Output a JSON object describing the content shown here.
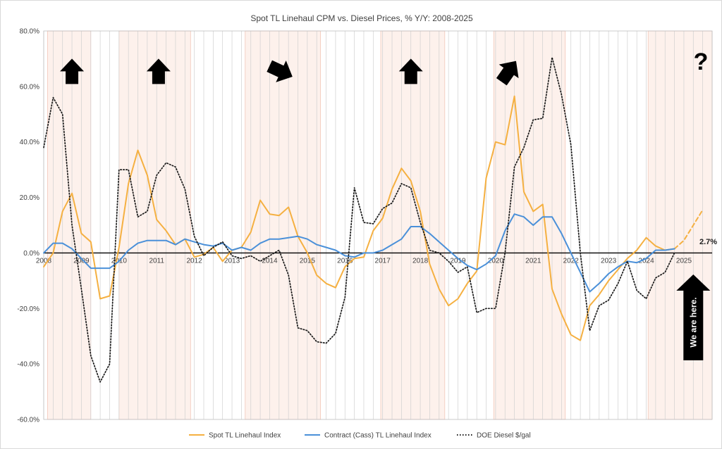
{
  "chart_data": {
    "type": "line",
    "title": "Spot TL Linehaul CPM vs. Diesel Prices, % Y/Y: 2008-2025",
    "xlabel": "",
    "ylabel": "",
    "ylim": [
      -60,
      80
    ],
    "y_ticks": [
      "80.0%",
      "60.0%",
      "40.0%",
      "20.0%",
      "0.0%",
      "-20.0%",
      "-40.0%",
      "-60.0%"
    ],
    "y_tick_values": [
      80,
      60,
      40,
      20,
      0,
      -20,
      -40,
      -60
    ],
    "x_ticks": [
      "2008",
      "2009",
      "2010",
      "2011",
      "2012",
      "2013",
      "2014",
      "2015",
      "2016",
      "2017",
      "2018",
      "2019",
      "2020",
      "2021",
      "2022",
      "2023",
      "2024",
      "2025"
    ],
    "xlim": [
      2008.0,
      2025.75
    ],
    "grid": "vertical quarterly lines",
    "legend_position": "bottom",
    "series": [
      {
        "name": "Spot TL Linehaul Index",
        "color": "#f5b041",
        "style": "solid",
        "points": [
          [
            2008.0,
            -5
          ],
          [
            2008.25,
            0
          ],
          [
            2008.5,
            15
          ],
          [
            2008.75,
            21.5
          ],
          [
            2009.0,
            7
          ],
          [
            2009.25,
            4
          ],
          [
            2009.5,
            -16.5
          ],
          [
            2009.75,
            -15.5
          ],
          [
            2010.0,
            2
          ],
          [
            2010.25,
            25
          ],
          [
            2010.5,
            37
          ],
          [
            2010.75,
            28
          ],
          [
            2011.0,
            12
          ],
          [
            2011.25,
            8
          ],
          [
            2011.5,
            3
          ],
          [
            2011.75,
            5
          ],
          [
            2012.0,
            -1.5
          ],
          [
            2012.25,
            -0.5
          ],
          [
            2012.5,
            2
          ],
          [
            2012.75,
            -3
          ],
          [
            2013.0,
            1
          ],
          [
            2013.25,
            2
          ],
          [
            2013.5,
            7.5
          ],
          [
            2013.75,
            19
          ],
          [
            2014.0,
            14
          ],
          [
            2014.25,
            13.5
          ],
          [
            2014.5,
            16.5
          ],
          [
            2014.75,
            6
          ],
          [
            2015.0,
            0
          ],
          [
            2015.25,
            -8
          ],
          [
            2015.5,
            -11
          ],
          [
            2015.75,
            -12.5
          ],
          [
            2016.0,
            -5
          ],
          [
            2016.25,
            -2
          ],
          [
            2016.5,
            -1.5
          ],
          [
            2016.75,
            8
          ],
          [
            2017.0,
            12.5
          ],
          [
            2017.25,
            23
          ],
          [
            2017.5,
            30.5
          ],
          [
            2017.75,
            26
          ],
          [
            2018.0,
            15
          ],
          [
            2018.25,
            -4
          ],
          [
            2018.5,
            -13
          ],
          [
            2018.75,
            -19
          ],
          [
            2019.0,
            -16.5
          ],
          [
            2019.25,
            -11
          ],
          [
            2019.5,
            -6.5
          ],
          [
            2019.75,
            27
          ],
          [
            2020.0,
            40
          ],
          [
            2020.25,
            39
          ],
          [
            2020.5,
            56.5
          ],
          [
            2020.75,
            22
          ],
          [
            2021.0,
            15
          ],
          [
            2021.25,
            17.5
          ],
          [
            2021.5,
            -13
          ],
          [
            2021.75,
            -22
          ],
          [
            2022.0,
            -29.5
          ],
          [
            2022.25,
            -31.5
          ],
          [
            2022.5,
            -19
          ],
          [
            2022.75,
            -15
          ],
          [
            2023.0,
            -10
          ],
          [
            2023.25,
            -6
          ],
          [
            2023.5,
            -2
          ],
          [
            2023.75,
            1
          ],
          [
            2024.0,
            5.5
          ],
          [
            2024.25,
            2.5
          ],
          [
            2024.5,
            1
          ],
          [
            2024.75,
            1.5
          ]
        ]
      },
      {
        "name": "Spot TL Linehaul Index (forecast)",
        "legend": false,
        "color": "#f5b041",
        "style": "dashed",
        "points": [
          [
            2024.75,
            1.5
          ],
          [
            2025.0,
            4.5
          ],
          [
            2025.25,
            10
          ],
          [
            2025.5,
            15.5
          ]
        ]
      },
      {
        "name": "Contract (Cass) TL Linehaul Index",
        "color": "#4a90d9",
        "style": "solid",
        "points": [
          [
            2008.0,
            0
          ],
          [
            2008.25,
            3.5
          ],
          [
            2008.5,
            3.5
          ],
          [
            2008.75,
            1.5
          ],
          [
            2009.0,
            -2
          ],
          [
            2009.25,
            -5.5
          ],
          [
            2009.5,
            -5.5
          ],
          [
            2009.75,
            -5.5
          ],
          [
            2010.0,
            -3
          ],
          [
            2010.25,
            1
          ],
          [
            2010.5,
            3.5
          ],
          [
            2010.75,
            4.5
          ],
          [
            2011.0,
            4.5
          ],
          [
            2011.25,
            4.5
          ],
          [
            2011.5,
            3
          ],
          [
            2011.75,
            5
          ],
          [
            2012.0,
            4
          ],
          [
            2012.25,
            3
          ],
          [
            2012.5,
            2.5
          ],
          [
            2012.75,
            3.5
          ],
          [
            2013.0,
            1
          ],
          [
            2013.25,
            2
          ],
          [
            2013.5,
            1
          ],
          [
            2013.75,
            3.5
          ],
          [
            2014.0,
            5
          ],
          [
            2014.25,
            5
          ],
          [
            2014.5,
            5.5
          ],
          [
            2014.75,
            6
          ],
          [
            2015.0,
            5
          ],
          [
            2015.25,
            3
          ],
          [
            2015.5,
            2
          ],
          [
            2015.75,
            1
          ],
          [
            2016.0,
            -1
          ],
          [
            2016.25,
            -1.5
          ],
          [
            2016.5,
            0
          ],
          [
            2016.75,
            0
          ],
          [
            2017.0,
            1
          ],
          [
            2017.25,
            3
          ],
          [
            2017.5,
            5
          ],
          [
            2017.75,
            9.5
          ],
          [
            2018.0,
            9.5
          ],
          [
            2018.25,
            7
          ],
          [
            2018.5,
            4
          ],
          [
            2018.75,
            1
          ],
          [
            2019.0,
            -2
          ],
          [
            2019.25,
            -4.5
          ],
          [
            2019.5,
            -6
          ],
          [
            2019.75,
            -4
          ],
          [
            2020.0,
            -1
          ],
          [
            2020.25,
            8
          ],
          [
            2020.5,
            14
          ],
          [
            2020.75,
            13
          ],
          [
            2021.0,
            10
          ],
          [
            2021.25,
            13
          ],
          [
            2021.5,
            13
          ],
          [
            2021.75,
            7
          ],
          [
            2022.0,
            0
          ],
          [
            2022.25,
            -7
          ],
          [
            2022.5,
            -14
          ],
          [
            2022.75,
            -11
          ],
          [
            2023.0,
            -7.5
          ],
          [
            2023.25,
            -5
          ],
          [
            2023.5,
            -3
          ],
          [
            2023.75,
            -3.5
          ],
          [
            2024.0,
            -2
          ],
          [
            2024.25,
            1
          ],
          [
            2024.5,
            1
          ],
          [
            2024.75,
            1.5
          ]
        ]
      },
      {
        "name": "DOE Diesel $/gal",
        "color": "#1a1a1a",
        "style": "dotted",
        "points": [
          [
            2008.0,
            38
          ],
          [
            2008.25,
            56
          ],
          [
            2008.5,
            50
          ],
          [
            2008.75,
            10
          ],
          [
            2009.0,
            -13
          ],
          [
            2009.25,
            -37
          ],
          [
            2009.5,
            -46.5
          ],
          [
            2009.75,
            -40
          ],
          [
            2010.0,
            30
          ],
          [
            2010.25,
            30
          ],
          [
            2010.5,
            13
          ],
          [
            2010.75,
            15
          ],
          [
            2011.0,
            28
          ],
          [
            2011.25,
            32.5
          ],
          [
            2011.5,
            31
          ],
          [
            2011.75,
            23
          ],
          [
            2012.0,
            6
          ],
          [
            2012.25,
            -1
          ],
          [
            2012.5,
            2
          ],
          [
            2012.75,
            4
          ],
          [
            2013.0,
            -1
          ],
          [
            2013.25,
            -2
          ],
          [
            2013.5,
            -1
          ],
          [
            2013.75,
            -3
          ],
          [
            2014.0,
            -1
          ],
          [
            2014.25,
            1
          ],
          [
            2014.5,
            -8
          ],
          [
            2014.75,
            -27
          ],
          [
            2015.0,
            -28
          ],
          [
            2015.25,
            -32
          ],
          [
            2015.5,
            -32.5
          ],
          [
            2015.75,
            -29
          ],
          [
            2016.0,
            -16
          ],
          [
            2016.25,
            23.5
          ],
          [
            2016.5,
            11
          ],
          [
            2016.75,
            10.5
          ],
          [
            2017.0,
            16
          ],
          [
            2017.25,
            18
          ],
          [
            2017.5,
            25
          ],
          [
            2017.75,
            23.5
          ],
          [
            2018.0,
            11
          ],
          [
            2018.25,
            1
          ],
          [
            2018.5,
            0
          ],
          [
            2018.75,
            -3
          ],
          [
            2019.0,
            -7
          ],
          [
            2019.25,
            -5
          ],
          [
            2019.5,
            -21.5
          ],
          [
            2019.75,
            -20
          ],
          [
            2020.0,
            -20
          ],
          [
            2020.25,
            0
          ],
          [
            2020.5,
            31
          ],
          [
            2020.75,
            38
          ],
          [
            2021.0,
            48
          ],
          [
            2021.25,
            48.5
          ],
          [
            2021.5,
            70.5
          ],
          [
            2021.75,
            57
          ],
          [
            2022.0,
            39
          ],
          [
            2022.25,
            0
          ],
          [
            2022.5,
            -28
          ],
          [
            2022.75,
            -19
          ],
          [
            2023.0,
            -17
          ],
          [
            2023.25,
            -11
          ],
          [
            2023.5,
            -3
          ],
          [
            2023.75,
            -13.5
          ],
          [
            2024.0,
            -16.5
          ],
          [
            2024.25,
            -9
          ],
          [
            2024.5,
            -7
          ],
          [
            2024.75,
            0
          ]
        ]
      }
    ],
    "shaded_periods": [
      [
        2008.1,
        2009.25
      ],
      [
        2010.0,
        2011.9
      ],
      [
        2013.35,
        2015.35
      ],
      [
        2016.95,
        2018.65
      ],
      [
        2019.95,
        2021.85
      ],
      [
        2024.05,
        2025.75
      ]
    ],
    "annotations": {
      "arrows": [
        {
          "at": 2008.75,
          "y": 70,
          "angle": -90,
          "color": "#000000"
        },
        {
          "at": 2011.05,
          "y": 70,
          "angle": -90,
          "color": "#000000"
        },
        {
          "at": 2014.3,
          "y": 70,
          "angle": 25,
          "color": "#000000"
        },
        {
          "at": 2017.75,
          "y": 70,
          "angle": -90,
          "color": "#000000"
        },
        {
          "at": 2020.35,
          "y": 70,
          "angle": -55,
          "color": "#000000"
        }
      ],
      "question_mark": "?",
      "value_label": "2.7%",
      "we_are_here": "We are here."
    }
  }
}
